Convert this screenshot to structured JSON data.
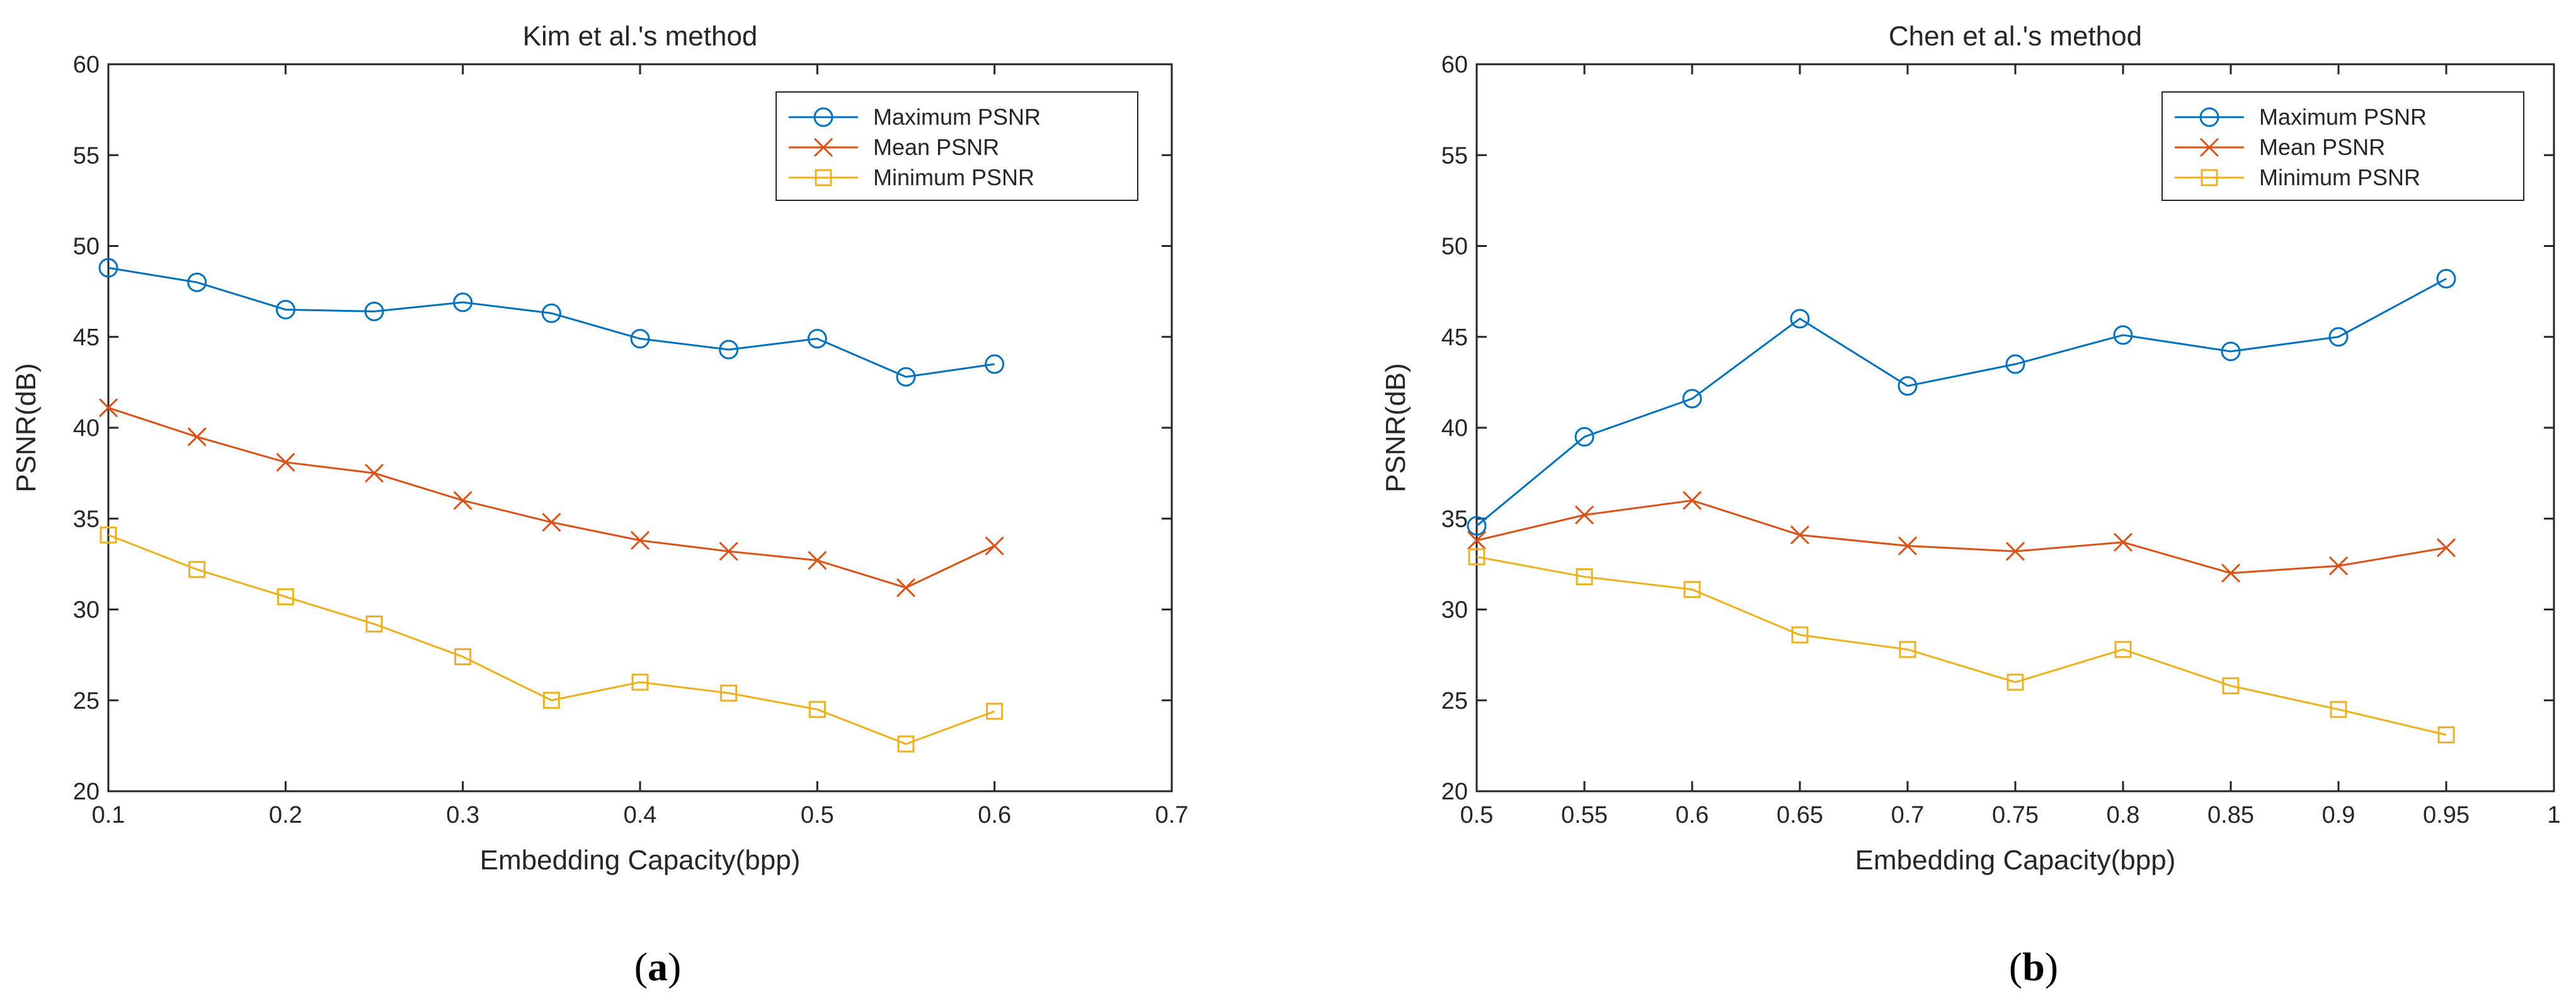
{
  "chart_data": [
    {
      "type": "line",
      "title": "Kim et al.'s method",
      "xlabel": "Embedding Capacity(bpp)",
      "ylabel": "PSNR(dB)",
      "xlim": [
        0.1,
        0.7
      ],
      "ylim": [
        20,
        60
      ],
      "xticks": [
        0.1,
        0.2,
        0.3,
        0.4,
        0.5,
        0.6,
        0.7
      ],
      "xtick_labels": [
        "0.1",
        "0.2",
        "0.3",
        "0.4",
        "0.5",
        "0.6",
        "0.7"
      ],
      "yticks": [
        20,
        25,
        30,
        35,
        40,
        45,
        50,
        55,
        60
      ],
      "ytick_labels": [
        "20",
        "25",
        "30",
        "35",
        "40",
        "45",
        "50",
        "55",
        "60"
      ],
      "legend_position": "top-right",
      "x": [
        0.1,
        0.15,
        0.2,
        0.25,
        0.3,
        0.35,
        0.4,
        0.45,
        0.5,
        0.55,
        0.6
      ],
      "series": [
        {
          "name": "Maximum PSNR",
          "marker": "circle",
          "color": "#0072BD",
          "values": [
            48.8,
            48.0,
            46.5,
            46.4,
            46.9,
            46.3,
            44.9,
            44.3,
            44.9,
            42.8,
            43.5
          ]
        },
        {
          "name": "Mean PSNR",
          "marker": "x",
          "color": "#D95319",
          "values": [
            41.1,
            39.5,
            38.1,
            37.5,
            36.0,
            34.8,
            33.8,
            33.2,
            32.7,
            31.2,
            33.5
          ]
        },
        {
          "name": "Minimum PSNR",
          "marker": "square",
          "color": "#EDB120",
          "values": [
            34.1,
            32.2,
            30.7,
            29.2,
            27.4,
            25.0,
            26.0,
            25.4,
            24.5,
            22.6,
            24.4
          ]
        }
      ]
    },
    {
      "type": "line",
      "title": "Chen et al.'s method",
      "xlabel": "Embedding Capacity(bpp)",
      "ylabel": "PSNR(dB)",
      "xlim": [
        0.5,
        1.0
      ],
      "ylim": [
        20,
        60
      ],
      "xticks": [
        0.5,
        0.55,
        0.6,
        0.65,
        0.7,
        0.75,
        0.8,
        0.85,
        0.9,
        0.95,
        1.0
      ],
      "xtick_labels": [
        "0.5",
        "0.55",
        "0.6",
        "0.65",
        "0.7",
        "0.75",
        "0.8",
        "0.85",
        "0.9",
        "0.95",
        "1"
      ],
      "yticks": [
        20,
        25,
        30,
        35,
        40,
        45,
        50,
        55,
        60
      ],
      "ytick_labels": [
        "20",
        "25",
        "30",
        "35",
        "40",
        "45",
        "50",
        "55",
        "60"
      ],
      "legend_position": "top-right",
      "x": [
        0.5,
        0.55,
        0.6,
        0.65,
        0.7,
        0.75,
        0.8,
        0.85,
        0.9,
        0.95
      ],
      "series": [
        {
          "name": "Maximum PSNR",
          "marker": "circle",
          "color": "#0072BD",
          "values": [
            34.6,
            39.5,
            41.6,
            46.0,
            42.3,
            43.5,
            45.1,
            44.2,
            45.0,
            48.2
          ]
        },
        {
          "name": "Mean PSNR",
          "marker": "x",
          "color": "#D95319",
          "values": [
            33.8,
            35.2,
            36.0,
            34.1,
            33.5,
            33.2,
            33.7,
            32.0,
            32.4,
            33.4
          ]
        },
        {
          "name": "Minimum PSNR",
          "marker": "square",
          "color": "#EDB120",
          "values": [
            32.9,
            31.8,
            31.1,
            28.6,
            27.8,
            26.0,
            27.8,
            25.8,
            24.5,
            23.1
          ]
        }
      ]
    }
  ],
  "captions": {
    "a": {
      "open": "(",
      "letter": "a",
      "close": ")"
    },
    "b": {
      "open": "(",
      "letter": "b",
      "close": ")"
    }
  }
}
